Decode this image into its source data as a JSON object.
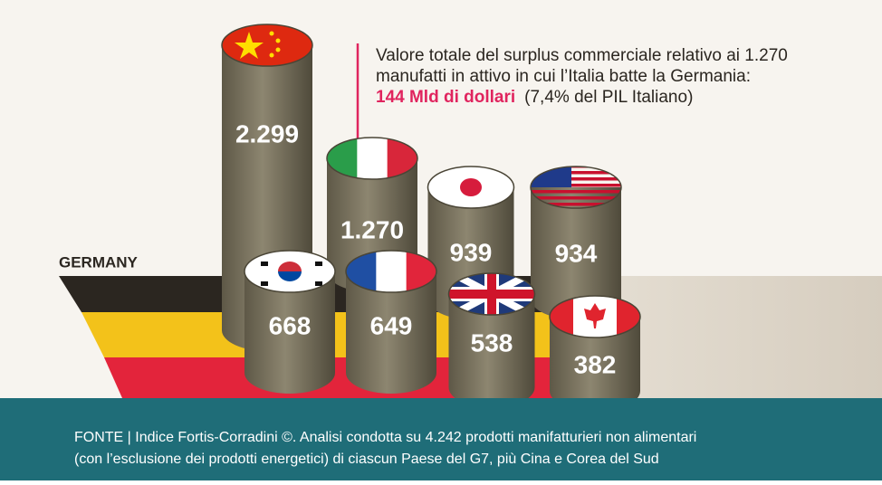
{
  "note": {
    "line1": "Valore totale del surplus commerciale relativo ai 1.270",
    "line2": "manufatti  in attivo in cui l’Italia batte la Germania:",
    "highlight": "144 Mld di dollari",
    "rest": "(7,4% del PIL  Italiano)"
  },
  "germany_label": "GERMANY",
  "cylinders": [
    "2.299",
    "1.270",
    "939",
    "934",
    "668",
    "649",
    "538",
    "382"
  ],
  "source": [
    "FONTE | Indice Fortis-Corradini  ©. Analisi condotta su 4.242 prodotti manifatturieri non alimentari",
    "(con l’esclusione dei prodotti energetici) di ciascun Paese del G7, più Cina e Corea del Sud"
  ]
}
